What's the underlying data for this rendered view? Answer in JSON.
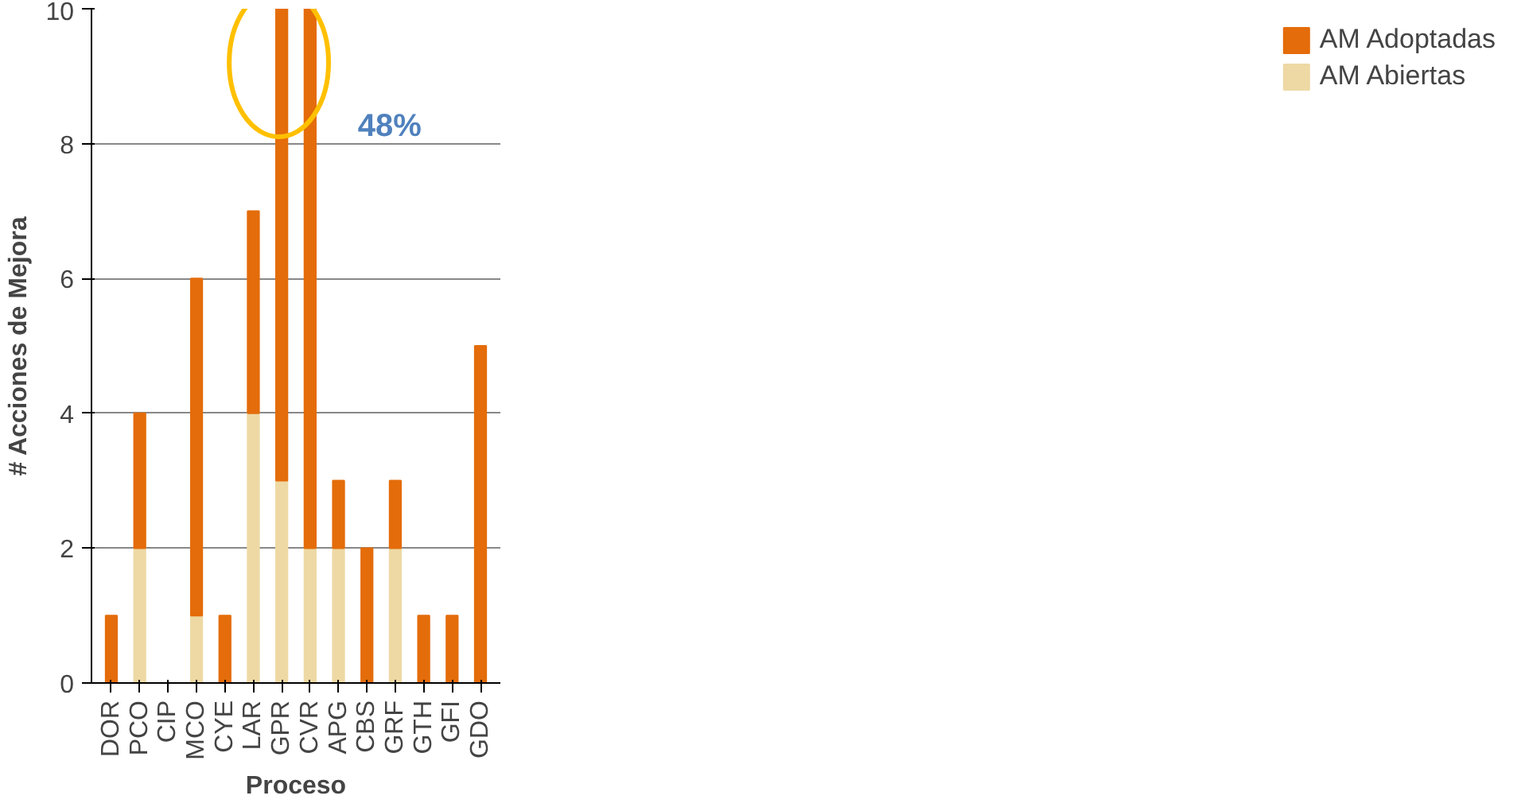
{
  "chart_data": {
    "type": "bar",
    "stacked": true,
    "xlabel": "Proceso",
    "ylabel": "# Acciones de Mejora",
    "categories": [
      "DOR",
      "PCO",
      "CIP",
      "MCO",
      "CYE",
      "LAR",
      "GPR",
      "CVR",
      "APG",
      "CBS",
      "GRF",
      "GTH",
      "GFI",
      "GDO"
    ],
    "series": [
      {
        "name": "AM Abiertas",
        "color": "#eed9a4",
        "values": [
          0,
          2,
          0,
          1,
          0,
          4,
          3,
          2,
          2,
          0,
          2,
          0,
          0,
          0
        ]
      },
      {
        "name": "AM Adoptadas",
        "color": "#e46c0a",
        "values": [
          1,
          2,
          0,
          5,
          1,
          3,
          7,
          8,
          1,
          2,
          1,
          1,
          1,
          5
        ]
      }
    ],
    "ylim": [
      0,
      10
    ],
    "yticks": [
      0,
      2,
      4,
      6,
      8,
      10
    ],
    "grid": "y",
    "legend": "right",
    "annotations": [
      "48%"
    ]
  }
}
